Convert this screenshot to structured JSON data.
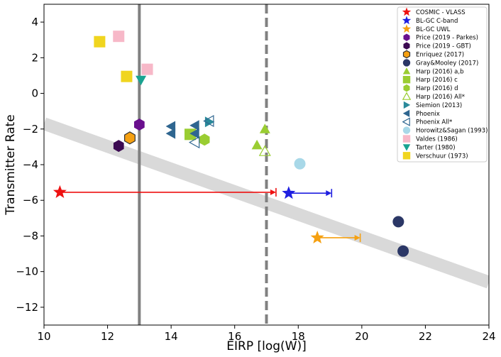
{
  "chart_data": {
    "type": "scatter",
    "title": "",
    "xlabel": "EIRP [log(W)]",
    "ylabel": "Transmitter Rate",
    "xlim": [
      10,
      24
    ],
    "ylim": [
      -13,
      5
    ],
    "x_ticks": [
      10,
      12,
      14,
      16,
      18,
      20,
      22,
      24
    ],
    "y_ticks": [
      4,
      2,
      0,
      -2,
      -4,
      -6,
      -8,
      -10,
      -12
    ],
    "x_tick_labels": [
      "10",
      "12",
      "14",
      "16",
      "18",
      "20",
      "22",
      "24"
    ],
    "y_tick_labels": [
      "4",
      "2",
      "0",
      "−2",
      "−4",
      "−6",
      "−8",
      "−10",
      "−12"
    ],
    "grid": false,
    "legend_position": "top-right",
    "band": {
      "x": [
        10,
        24
      ],
      "y": [
        -1.7,
        -10.6
      ],
      "color": "#d9d9d9"
    },
    "vlines": [
      {
        "x": 13.0,
        "style": "solid",
        "color": "#808080"
      },
      {
        "x": 17.0,
        "style": "dashed",
        "color": "#808080"
      }
    ],
    "series": [
      {
        "name": "COSMIC - VLASS",
        "marker": "star",
        "color": "#ee1111",
        "points": [
          {
            "x": 10.5,
            "y": -5.55,
            "arrow_to": 17.3
          }
        ]
      },
      {
        "name": "BL-GC C-band",
        "marker": "star",
        "color": "#1f1fe0",
        "points": [
          {
            "x": 17.7,
            "y": -5.6,
            "arrow_to": 19.05
          }
        ]
      },
      {
        "name": "BL-GC UWL",
        "marker": "star",
        "color": "#f5a011",
        "points": [
          {
            "x": 18.6,
            "y": -8.1,
            "arrow_to": 19.95
          }
        ]
      },
      {
        "name": "Price (2019 - Parkes)",
        "marker": "hexagon",
        "color": "#6a0f8e",
        "points": [
          {
            "x": 13.0,
            "y": -1.75
          }
        ]
      },
      {
        "name": "Price (2019 - GBT)",
        "marker": "hexagon",
        "color": "#3c0a52",
        "points": [
          {
            "x": 12.35,
            "y": -2.95
          }
        ]
      },
      {
        "name": "Enriquez (2017)",
        "marker": "hexagon",
        "color": "#f5a011",
        "edge": "#333333",
        "points": [
          {
            "x": 12.7,
            "y": -2.5
          }
        ]
      },
      {
        "name": "Gray&Mooley (2017)",
        "marker": "circle",
        "color": "#2b3766",
        "points": [
          {
            "x": 21.15,
            "y": -7.2
          },
          {
            "x": 21.3,
            "y": -8.85
          }
        ]
      },
      {
        "name": "Harp (2016) a,b",
        "marker": "triangle-up",
        "color": "#9acd32",
        "points": [
          {
            "x": 16.7,
            "y": -2.9
          },
          {
            "x": 16.95,
            "y": -2.0
          }
        ]
      },
      {
        "name": "Harp (2016) c",
        "marker": "square",
        "color": "#9acd32",
        "points": [
          {
            "x": 14.6,
            "y": -2.3
          }
        ]
      },
      {
        "name": "Harp (2016) d",
        "marker": "hexagon",
        "color": "#9acd32",
        "points": [
          {
            "x": 15.05,
            "y": -2.6
          }
        ]
      },
      {
        "name": "Harp (2016) All*",
        "marker": "triangle-up-open",
        "color": "#9acd32",
        "points": [
          {
            "x": 16.95,
            "y": -3.25
          }
        ]
      },
      {
        "name": "Siemion (2013)",
        "marker": "triangle-right",
        "color": "#2a8a9a",
        "points": [
          {
            "x": 15.2,
            "y": -1.6
          }
        ]
      },
      {
        "name": "Phoenix",
        "marker": "triangle-left",
        "color": "#2f6690",
        "points": [
          {
            "x": 14.0,
            "y": -1.85
          },
          {
            "x": 14.0,
            "y": -2.25
          },
          {
            "x": 14.75,
            "y": -1.8
          },
          {
            "x": 14.75,
            "y": -2.25
          }
        ]
      },
      {
        "name": "Phoenix All*",
        "marker": "triangle-left-open",
        "color": "#2f6690",
        "points": [
          {
            "x": 14.75,
            "y": -2.75
          },
          {
            "x": 15.2,
            "y": -1.55
          }
        ]
      },
      {
        "name": "Horowitz&Sagan (1993)",
        "marker": "circle",
        "color": "#a8d8e8",
        "points": [
          {
            "x": 18.05,
            "y": -3.95
          }
        ]
      },
      {
        "name": "Valdes (1986)",
        "marker": "square",
        "color": "#f7b8c8",
        "points": [
          {
            "x": 12.35,
            "y": 3.2
          },
          {
            "x": 13.25,
            "y": 1.35
          }
        ]
      },
      {
        "name": "Tarter (1980)",
        "marker": "triangle-down",
        "color": "#1aa391",
        "points": [
          {
            "x": 13.05,
            "y": 0.75
          }
        ]
      },
      {
        "name": "Verschuur (1973)",
        "marker": "square",
        "color": "#f0d51f",
        "points": [
          {
            "x": 11.75,
            "y": 2.9
          },
          {
            "x": 12.6,
            "y": 0.95
          }
        ]
      }
    ]
  }
}
